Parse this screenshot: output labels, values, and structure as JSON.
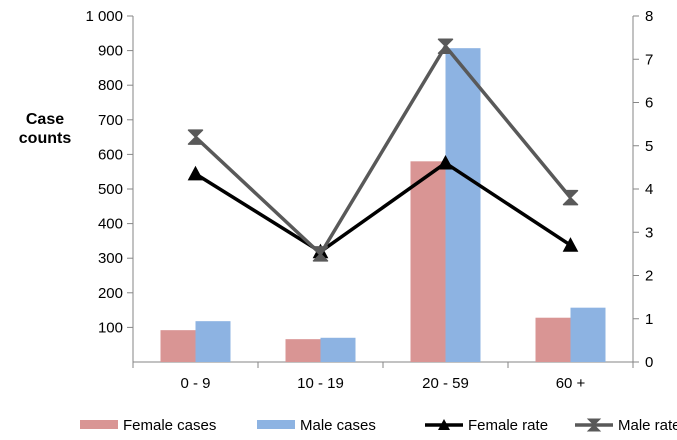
{
  "chart_data": {
    "type": "bar",
    "title": "",
    "categories": [
      "0 - 9",
      "10 - 19",
      "20 - 59",
      "60 +"
    ],
    "y_left": {
      "label_lines": [
        "Case",
        "counts"
      ],
      "ylim": [
        0,
        1000
      ],
      "ticks": [
        100,
        200,
        300,
        400,
        500,
        600,
        700,
        800,
        900,
        1000
      ],
      "tick_labels": [
        "100",
        "200",
        "300",
        "400",
        "500",
        "600",
        "700",
        "800",
        "900",
        "1 000"
      ]
    },
    "y_right": {
      "ylim": [
        0,
        8
      ],
      "ticks": [
        0,
        1,
        2,
        3,
        4,
        5,
        6,
        7,
        8
      ],
      "tick_labels": [
        "0",
        "1",
        "2",
        "3",
        "4",
        "5",
        "6",
        "7",
        "8"
      ]
    },
    "grid": false,
    "legend_position": "bottom",
    "series": [
      {
        "name": "Female cases",
        "type": "bar",
        "axis": "left",
        "color": "#d99594",
        "values": [
          92,
          66,
          580,
          128
        ]
      },
      {
        "name": "Male cases",
        "type": "bar",
        "axis": "left",
        "color": "#8db3e2",
        "values": [
          118,
          70,
          907,
          157
        ]
      },
      {
        "name": "Female rate",
        "type": "line",
        "axis": "right",
        "color": "#000000",
        "marker": "triangle",
        "values": [
          4.35,
          2.55,
          4.6,
          2.7
        ]
      },
      {
        "name": "Male rate",
        "type": "line",
        "axis": "right",
        "color": "#595959",
        "marker": "hourglass",
        "values": [
          5.2,
          2.5,
          7.3,
          3.8
        ]
      }
    ]
  }
}
